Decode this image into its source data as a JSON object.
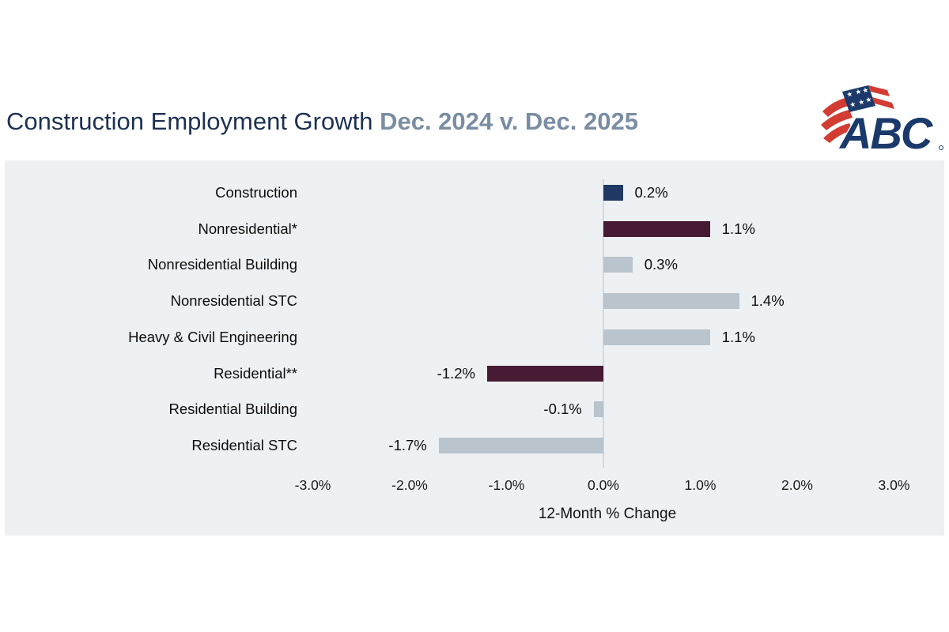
{
  "header": {
    "title_main": "Construction Employment Growth ",
    "title_period": "Dec. 2024 v. Dec. 2025",
    "logo_text": "ABC",
    "logo_registered_mark": "®"
  },
  "chart_data": {
    "type": "bar",
    "orientation": "horizontal",
    "title": "Construction Employment Growth Dec. 2024 v. Dec. 2025",
    "categories": [
      "Construction",
      "Nonresidential*",
      "Nonresidential Building",
      "Nonresidential STC",
      "Heavy & Civil Engineering",
      "Residential**",
      "Residential Building",
      "Residential STC"
    ],
    "values": [
      0.2,
      1.1,
      0.3,
      1.4,
      1.1,
      -1.2,
      -0.1,
      -1.7
    ],
    "value_labels": [
      "0.2%",
      "1.1%",
      "0.3%",
      "1.4%",
      "1.1%",
      "-1.2%",
      "-0.1%",
      "-1.7%"
    ],
    "bar_colors": [
      "#1f3864",
      "#471b33",
      "#b9c4cd",
      "#b9c4cd",
      "#b9c4cd",
      "#471b33",
      "#b9c4cd",
      "#b9c4cd"
    ],
    "xlabel": "12-Month % Change",
    "x_ticks": [
      "-3.0%",
      "-2.0%",
      "-1.0%",
      "0.0%",
      "1.0%",
      "2.0%",
      "3.0%"
    ],
    "x_tick_values": [
      -3,
      -2,
      -1,
      0,
      1,
      2,
      3
    ],
    "xlim": [
      -3,
      3
    ],
    "grid": false,
    "legend": "none",
    "plot_background": "#eef1f3",
    "zero_line_color": "#d5d9dd"
  },
  "colors": {
    "title_navy": "#1e3152",
    "title_slate": "#7a8da3",
    "logo_navy": "#1b3a6b",
    "logo_red": "#d23c32"
  }
}
